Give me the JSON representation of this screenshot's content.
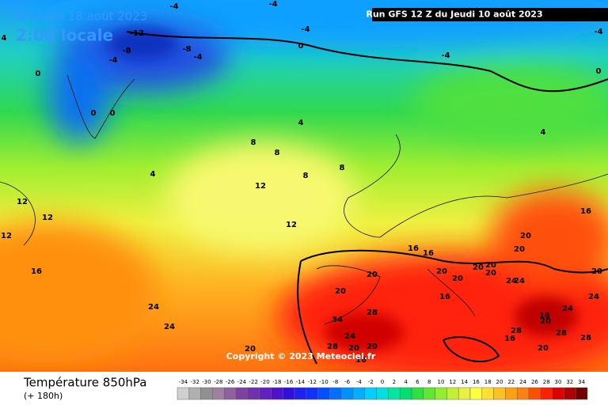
{
  "header": {
    "date": "Vendredi 18 août 2023",
    "time": "2:00 locale",
    "run": "Run GFS 12 Z du Jeudi 10 août 2023"
  },
  "copyright": "Copyright © 2023 Meteociel.fr",
  "footer": {
    "title": "Température 850hPa",
    "subtitle": "(+ 180h)"
  },
  "contour_labels": [
    -4,
    -4,
    -12,
    -8,
    -8,
    -4,
    -4,
    4,
    -4,
    0,
    -4,
    -4,
    0,
    0,
    0,
    0,
    4,
    8,
    8,
    4,
    8,
    8,
    12,
    4,
    16,
    12,
    12,
    12,
    12,
    16,
    16,
    16,
    20,
    20,
    20,
    20,
    20,
    20,
    20,
    20,
    24,
    24,
    20,
    20,
    16,
    24,
    24,
    28,
    34,
    24,
    16,
    20,
    24,
    28,
    28,
    28,
    24,
    28,
    20,
    20,
    16,
    20,
    20,
    16
  ],
  "colorbar": {
    "ticks": [
      -34,
      -32,
      -30,
      -28,
      -26,
      -24,
      -22,
      -20,
      -18,
      -16,
      -14,
      -12,
      -10,
      -8,
      -6,
      -4,
      -2,
      0,
      2,
      4,
      6,
      8,
      10,
      12,
      14,
      16,
      18,
      20,
      22,
      24,
      26,
      28,
      30,
      32,
      34
    ],
    "colors": [
      "#d0d0d0",
      "#b0b0b0",
      "#909090",
      "#a080a0",
      "#9060a0",
      "#8040a0",
      "#7030b0",
      "#6020c0",
      "#5010d0",
      "#3010e0",
      "#2020f0",
      "#1030ff",
      "#0050ff",
      "#0070ff",
      "#0090ff",
      "#00b0ff",
      "#00d0ff",
      "#00e0e0",
      "#00e8a0",
      "#00e070",
      "#30e040",
      "#60e830",
      "#90f030",
      "#c0f030",
      "#e8f040",
      "#ffff40",
      "#ffe030",
      "#ffc020",
      "#ffa010",
      "#ff8010",
      "#ff5000",
      "#ff2000",
      "#e00000",
      "#b00000",
      "#700000"
    ]
  }
}
